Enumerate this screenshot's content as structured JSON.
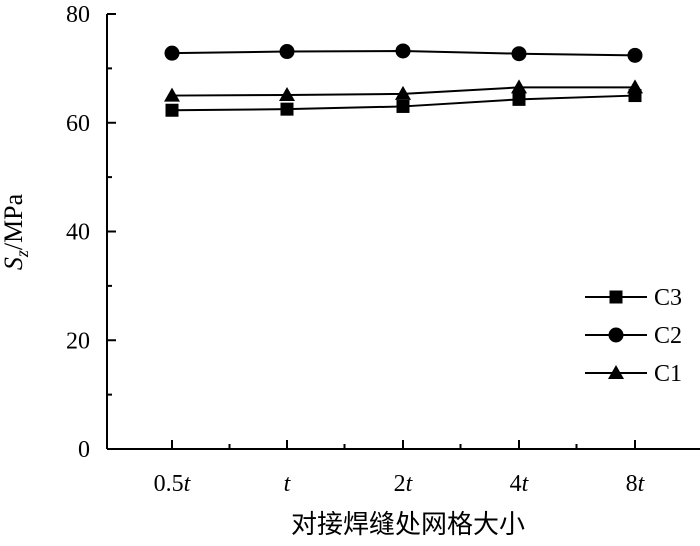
{
  "chart_data": {
    "type": "line",
    "title": "",
    "xlabel": "对接焊缝处网格大小",
    "ylabel": "S_z/MPa",
    "ylabel_main": "S",
    "ylabel_sub": "z",
    "ylabel_unit": "/MPa",
    "categories": [
      "0.5t",
      "t",
      "2t",
      "4t",
      "8t"
    ],
    "category_labels": [
      {
        "prefix": "0.5",
        "suffix": "t"
      },
      {
        "prefix": "",
        "suffix": "t"
      },
      {
        "prefix": "2",
        "suffix": "t"
      },
      {
        "prefix": "4",
        "suffix": "t"
      },
      {
        "prefix": "8",
        "suffix": "t"
      }
    ],
    "ylim": [
      0,
      80
    ],
    "yticks": [
      "0",
      "20",
      "40",
      "60",
      "80"
    ],
    "grid": false,
    "legend_position": "lower-right",
    "series": [
      {
        "name": "C3",
        "marker": "square",
        "values": [
          62.3,
          62.5,
          63.0,
          64.3,
          65.0
        ]
      },
      {
        "name": "C2",
        "marker": "circle",
        "values": [
          72.8,
          73.1,
          73.2,
          72.7,
          72.4
        ]
      },
      {
        "name": "C1",
        "marker": "triangle",
        "values": [
          65.0,
          65.1,
          65.3,
          66.5,
          66.5
        ]
      }
    ]
  }
}
